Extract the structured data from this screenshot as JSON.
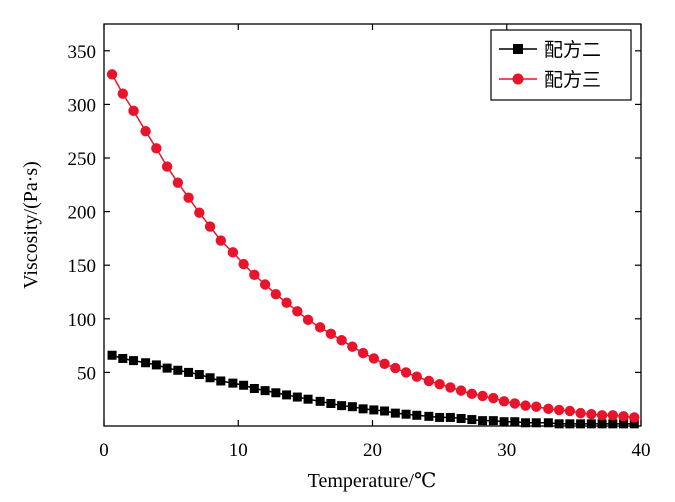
{
  "chart_data": {
    "type": "line",
    "xlabel": "Temperature/℃",
    "ylabel": "Viscosity/(Pa·s)",
    "xlim": [
      0,
      40
    ],
    "ylim": [
      0,
      375
    ],
    "x_ticks": [
      0,
      10,
      20,
      30,
      40
    ],
    "y_ticks": [
      50,
      100,
      150,
      200,
      250,
      300,
      350
    ],
    "grid": false,
    "legend_position": "top-right",
    "x": [
      0.6,
      1.4,
      2.2,
      3.1,
      3.9,
      4.7,
      5.5,
      6.3,
      7.1,
      7.9,
      8.7,
      9.6,
      10.4,
      11.2,
      12.0,
      12.8,
      13.6,
      14.4,
      15.2,
      16.1,
      16.9,
      17.7,
      18.5,
      19.3,
      20.1,
      20.9,
      21.7,
      22.5,
      23.3,
      24.2,
      25.0,
      25.8,
      26.6,
      27.4,
      28.2,
      29.0,
      29.8,
      30.6,
      31.4,
      32.2,
      33.1,
      33.9,
      34.7,
      35.5,
      36.3,
      37.1,
      37.9,
      38.7,
      39.5
    ],
    "series": [
      {
        "name": "配方二",
        "color": "#000000",
        "marker": "square",
        "values": [
          66,
          63,
          61,
          59,
          57,
          54,
          52,
          50,
          48,
          45,
          42,
          40,
          38,
          35,
          33,
          31,
          29,
          27,
          25,
          23,
          21,
          19,
          18,
          16,
          15,
          14,
          12,
          11,
          10,
          9,
          8,
          8,
          7,
          6,
          5,
          5,
          4,
          4,
          3,
          3,
          3,
          2,
          2,
          2,
          2,
          2,
          2,
          2,
          2
        ]
      },
      {
        "name": "配方三",
        "color": "#e8142b",
        "marker": "circle",
        "values": [
          328,
          310,
          294,
          275,
          259,
          242,
          227,
          213,
          199,
          186,
          173,
          162,
          151,
          141,
          132,
          123,
          115,
          107,
          99,
          92,
          86,
          80,
          74,
          68,
          63,
          58,
          54,
          50,
          46,
          42,
          39,
          36,
          33,
          30,
          28,
          26,
          23,
          21,
          19,
          18,
          16,
          15,
          14,
          12,
          11,
          10,
          10,
          9,
          8
        ]
      }
    ]
  }
}
